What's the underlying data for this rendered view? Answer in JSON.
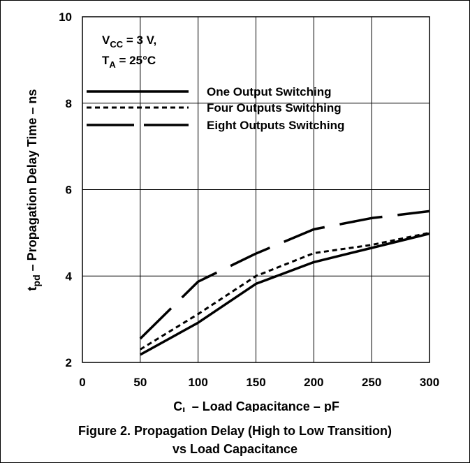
{
  "chart_data": {
    "type": "line",
    "title": "",
    "xlabel_main": "C",
    "xlabel_sub": "L",
    "xlabel_rest": " – Load Capacitance – pF",
    "ylabel_main": "t",
    "ylabel_sub": "pd",
    "ylabel_rest": " – Propagation Delay Time – ns",
    "xlim": [
      0,
      300
    ],
    "ylim": [
      2,
      10
    ],
    "xticks": [
      "0",
      "50",
      "100",
      "150",
      "200",
      "250",
      "300"
    ],
    "yticks": [
      "2",
      "4",
      "6",
      "8",
      "10"
    ],
    "grid": true,
    "conditions": {
      "vcc_main": "V",
      "vcc_sub": "CC",
      "vcc_rest": " = 3 V,",
      "ta_main": "T",
      "ta_sub": "A",
      "ta_rest": " = 25°C"
    },
    "legend_position": "top-right",
    "series": [
      {
        "name": "One Output Switching",
        "style": "solid",
        "x": [
          50,
          100,
          150,
          200,
          250,
          300
        ],
        "y": [
          2.18,
          2.92,
          3.82,
          4.32,
          4.65,
          4.98
        ]
      },
      {
        "name": "Four Outputs Switching",
        "style": "dotted",
        "x": [
          50,
          100,
          150,
          200,
          250,
          300
        ],
        "y": [
          2.3,
          3.12,
          4.0,
          4.53,
          4.72,
          5.0
        ]
      },
      {
        "name": "Eight Outputs Switching",
        "style": "long-dash",
        "x": [
          50,
          100,
          150,
          200,
          250,
          300
        ],
        "y": [
          2.55,
          3.87,
          4.52,
          5.08,
          5.34,
          5.5
        ]
      }
    ]
  },
  "caption": {
    "line1": "Figure 2. Propagation Delay (High to Low Transition)",
    "line2": "vs Load Capacitance"
  }
}
